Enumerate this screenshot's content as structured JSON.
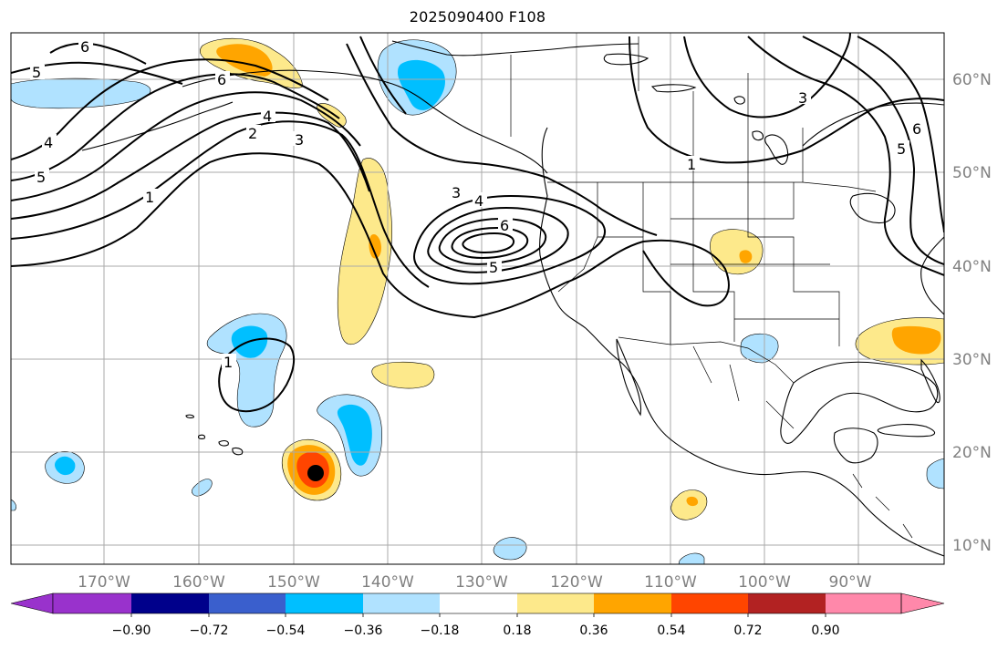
{
  "title": "2025090400 F108",
  "longitude_labels": [
    "170°W",
    "160°W",
    "150°W",
    "140°W",
    "130°W",
    "120°W",
    "110°W",
    "100°W",
    "90°W"
  ],
  "latitude_labels": [
    "60°N",
    "50°N",
    "40°N",
    "30°N",
    "20°N",
    "10°N"
  ],
  "colorbar": {
    "colors": [
      "#9932cc",
      "#00008b",
      "#3a5fcd",
      "#00bfff",
      "#b0e2ff",
      "#ffffff",
      "#fde98b",
      "#ffa500",
      "#ff4500",
      "#b22222",
      "#ff88aa"
    ],
    "tick_labels": [
      "−0.90",
      "−0.72",
      "−0.54",
      "−0.36",
      "−0.18",
      "0.18",
      "0.36",
      "0.54",
      "0.72",
      "0.90"
    ]
  },
  "contour_labels": [
    "6",
    "5",
    "4",
    "6",
    "5",
    "4",
    "3",
    "2",
    "1",
    "3",
    "4",
    "6",
    "5",
    "1",
    "3",
    "5",
    "6",
    "1"
  ],
  "palette": {
    "light_yellow": "#fde98b",
    "orange": "#ffa500",
    "red_orange": "#ff4500",
    "light_blue": "#b0e2ff",
    "deep_sky_blue": "#00bfff",
    "grid": "#aaaaaa",
    "marker": "#000000"
  }
}
